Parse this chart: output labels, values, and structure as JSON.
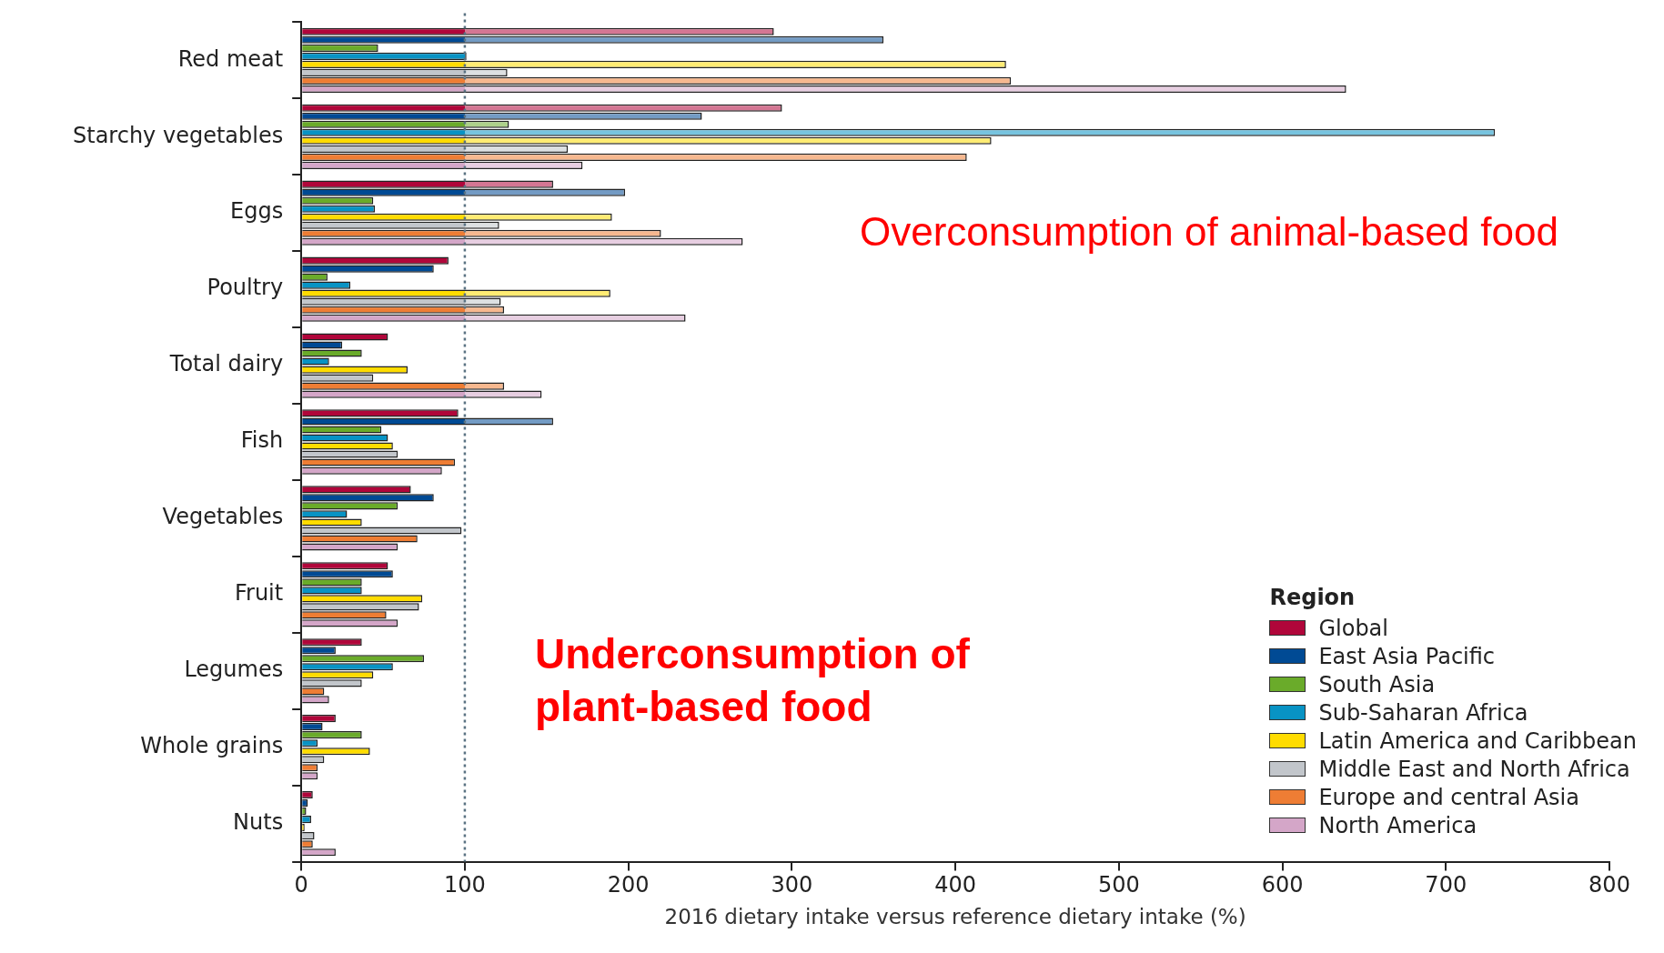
{
  "chart_data": {
    "type": "bar",
    "orientation": "horizontal",
    "xlabel": "2016 dietary intake versus reference dietary intake (%)",
    "legend_title": "Region",
    "legend": "bottom right",
    "grid": false,
    "categories": [
      "Red meat",
      "Starchy vegetables",
      "Eggs",
      "Poultry",
      "Total dairy",
      "Fish",
      "Vegetables",
      "Fruit",
      "Legumes",
      "Whole grains",
      "Nuts"
    ],
    "xlim": [
      0,
      800
    ],
    "xticks": [
      0,
      100,
      200,
      300,
      400,
      500,
      600,
      700,
      800
    ],
    "ref_lines": [
      {
        "axis": "x",
        "value": 100,
        "line_style": "dotted",
        "color": "#5a7282"
      }
    ],
    "annotations": [
      "Overconsumption of animal-based food",
      "Underconsumption of plant-based food"
    ],
    "series": [
      {
        "name": "Global",
        "color": "#b0063a",
        "values": [
          289,
          294,
          154,
          90,
          53,
          96,
          67,
          53,
          37,
          21,
          7
        ]
      },
      {
        "name": "East Asia Pacific",
        "color": "#004a94",
        "values": [
          356,
          245,
          198,
          81,
          25,
          154,
          81,
          56,
          21,
          13,
          4
        ]
      },
      {
        "name": "South Asia",
        "color": "#6aab2a",
        "values": [
          47,
          127,
          44,
          16,
          37,
          49,
          59,
          37,
          75,
          37,
          3
        ]
      },
      {
        "name": "Sub-Saharan Africa",
        "color": "#0893c4",
        "values": [
          101,
          730,
          45,
          30,
          17,
          53,
          28,
          37,
          56,
          10,
          6
        ]
      },
      {
        "name": "Latin America and Caribbean",
        "color": "#ffdc00",
        "values": [
          431,
          422,
          190,
          189,
          65,
          56,
          37,
          74,
          44,
          42,
          2
        ]
      },
      {
        "name": "Middle East and North Africa",
        "color": "#c2c6cb",
        "values": [
          126,
          163,
          121,
          122,
          44,
          59,
          98,
          72,
          37,
          14,
          8
        ]
      },
      {
        "name": "Europe and central  Asia",
        "color": "#ee7d34",
        "values": [
          434,
          407,
          220,
          124,
          124,
          94,
          71,
          52,
          14,
          10,
          7
        ]
      },
      {
        "name": "North America",
        "color": "#d4a6c8",
        "values": [
          639,
          172,
          270,
          235,
          147,
          86,
          59,
          59,
          17,
          10,
          21
        ]
      }
    ]
  }
}
